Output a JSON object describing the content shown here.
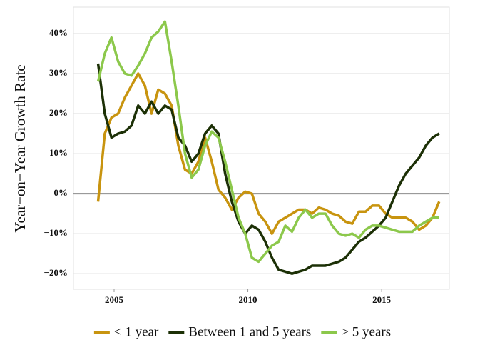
{
  "chart_data": {
    "type": "line",
    "y_label": "Year−on−Year Growth Rate",
    "x": [
      2004.4,
      2004.65,
      2004.9,
      2005.15,
      2005.4,
      2005.65,
      2005.9,
      2006.15,
      2006.4,
      2006.65,
      2006.9,
      2007.15,
      2007.4,
      2007.65,
      2007.9,
      2008.15,
      2008.4,
      2008.65,
      2008.9,
      2009.15,
      2009.4,
      2009.65,
      2009.9,
      2010.15,
      2010.4,
      2010.65,
      2010.9,
      2011.15,
      2011.4,
      2011.65,
      2011.9,
      2012.15,
      2012.4,
      2012.65,
      2012.9,
      2013.15,
      2013.4,
      2013.65,
      2013.9,
      2014.15,
      2014.4,
      2014.65,
      2014.9,
      2015.15,
      2015.4,
      2015.65,
      2015.9,
      2016.15,
      2016.4,
      2016.65,
      2016.9,
      2017.15
    ],
    "series": [
      {
        "name": "< 1 year",
        "color": "#c8940f",
        "values": [
          -2,
          15,
          19,
          20,
          24,
          27,
          30,
          27,
          20,
          26,
          25,
          22,
          12,
          6,
          5,
          8,
          14,
          8,
          1,
          -1,
          -4,
          -1,
          0.5,
          0,
          -5,
          -7,
          -10,
          -7,
          -6,
          -5,
          -4,
          -4,
          -5,
          -3.5,
          -4,
          -5,
          -5.5,
          -7,
          -7.5,
          -4.5,
          -4.5,
          -3,
          -3,
          -5,
          -6,
          -6,
          -6,
          -7,
          -9,
          -8,
          -6,
          -2
        ]
      },
      {
        "name": "Between 1 and 5 years",
        "color": "#1c3006",
        "values": [
          32.5,
          20,
          14,
          15,
          15.5,
          17,
          22,
          20,
          23,
          20,
          22,
          21,
          14,
          12,
          8,
          10,
          15,
          17,
          15,
          5,
          -2,
          -7,
          -10,
          -8,
          -9,
          -12,
          -16,
          -19,
          -19.5,
          -20,
          -19.5,
          -19,
          -18,
          -18,
          -18,
          -17.5,
          -17,
          -16,
          -14,
          -12,
          -11,
          -9.5,
          -8,
          -6,
          -2,
          2,
          5,
          7,
          9,
          12,
          14,
          15
        ]
      },
      {
        "name": "> 5 years",
        "color": "#8cc84b",
        "values": [
          28,
          35,
          39,
          33,
          30,
          29.5,
          32,
          35,
          39,
          40.5,
          43,
          33,
          22,
          10,
          4,
          6,
          12,
          15.5,
          14,
          8,
          1,
          -6,
          -10,
          -16,
          -17,
          -15,
          -13,
          -12,
          -8,
          -9.5,
          -6,
          -4,
          -6,
          -5,
          -5,
          -8,
          -10,
          -10.5,
          -10,
          -11,
          -9,
          -8,
          -8,
          -8.5,
          -9,
          -9.5,
          -9.5,
          -9.5,
          -8,
          -7,
          -6,
          -6
        ]
      }
    ],
    "xlim": [
      2003.48,
      2017.53
    ],
    "xticks": [
      2005,
      2010,
      2015
    ],
    "ylim": [
      -23.9,
      46.6
    ],
    "yticks": [
      {
        "value": -20,
        "label": "−20%"
      },
      {
        "value": -10,
        "label": "−10%"
      },
      {
        "value": 0,
        "label": "0%"
      },
      {
        "value": 10,
        "label": "10%"
      },
      {
        "value": 20,
        "label": "20%"
      },
      {
        "value": 30,
        "label": "30%"
      },
      {
        "value": 40,
        "label": "40%"
      }
    ],
    "grid": true,
    "zero_line": true,
    "legend": "bottom"
  }
}
